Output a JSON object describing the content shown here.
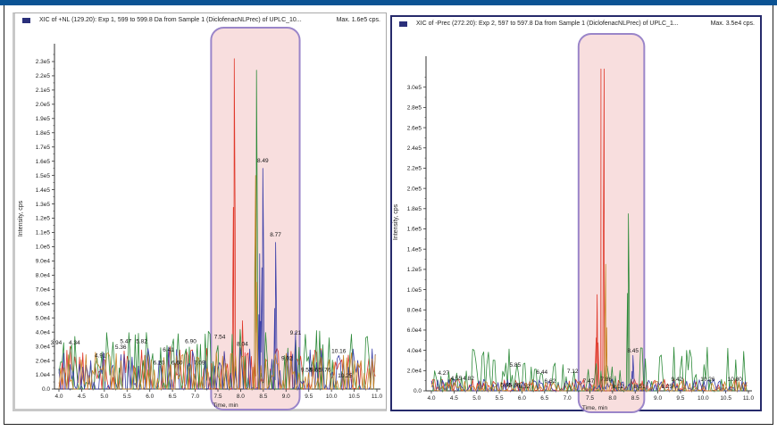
{
  "window": {
    "topbar_color": "#0b5394"
  },
  "panels": [
    {
      "id": "left",
      "header": {
        "title": "XIC of +NL (129.20): Exp 1, 599 to 599.8 Da from Sample 1 (DiclofenacNLPrec) of UPLC_10...",
        "max": "Max. 1.6e5 cps."
      }
    },
    {
      "id": "right",
      "header": {
        "title": "XIC of -Prec (272.20): Exp 2, 597 to 597.8 Da from Sample 1 (DiclofenacNLPrec) of UPLC_1...",
        "max": "Max. 3.5e4 cps."
      }
    }
  ],
  "chart_data": [
    {
      "type": "line",
      "title": "XIC of +NL (129.20): Exp 1, 599 to 599.8 Da from Sample 1 (DiclofenacNLPrec) of UPLC_10...",
      "annotation_max": "Max. 1.6e5 cps.",
      "xlabel": "Time, min",
      "ylabel": "Intensity, cps",
      "xlim": [
        4.0,
        11.0
      ],
      "ylim": [
        0,
        235000
      ],
      "x_ticks": [
        "4.0",
        "4.5",
        "5.0",
        "5.5",
        "6.0",
        "6.5",
        "7.0",
        "7.5",
        "8.0",
        "8.5",
        "9.0",
        "9.5",
        "10.0",
        "10.5",
        "11.0"
      ],
      "y_ticks": [
        "0.0",
        "1.0e4",
        "2.0e4",
        "3.0e4",
        "4.0e4",
        "5.0e4",
        "6.0e4",
        "7.0e4",
        "8.0e4",
        "9.0e4",
        "1.0e5",
        "1.1e5",
        "1.2e5",
        "1.3e5",
        "1.4e5",
        "1.5e5",
        "1.6e5",
        "1.7e5",
        "1.8e5",
        "1.9e5",
        "2.0e5",
        "2.1e5",
        "2.2e5",
        "2.3e5"
      ],
      "series_colors": [
        "#e0392b",
        "#2e8b3a",
        "#3b3fa8",
        "#c8862a"
      ],
      "highlight_region": {
        "x_from": 7.35,
        "x_to": 9.3,
        "fill": "#f8dede",
        "border": "#9a85c9"
      },
      "peaks": [
        {
          "series": 0,
          "x": 7.86,
          "y": 232000
        },
        {
          "series": 1,
          "x": 8.35,
          "y": 224000
        },
        {
          "series": 3,
          "x": 8.33,
          "y": 150000
        },
        {
          "series": 2,
          "x": 8.49,
          "y": 155000
        },
        {
          "series": 2,
          "x": 8.77,
          "y": 103000
        },
        {
          "series": 2,
          "x": 8.42,
          "y": 95000
        },
        {
          "series": 0,
          "x": 8.04,
          "y": 48000
        },
        {
          "series": 2,
          "x": 9.21,
          "y": 40000
        }
      ],
      "peak_labels": [
        {
          "text": "3.94",
          "x": 3.94,
          "y": 30000
        },
        {
          "text": "4.34",
          "x": 4.34,
          "y": 30000
        },
        {
          "text": "4.91",
          "x": 4.91,
          "y": 21000
        },
        {
          "text": "5.36",
          "x": 5.36,
          "y": 27000
        },
        {
          "text": "5.47",
          "x": 5.47,
          "y": 31000
        },
        {
          "text": "5.82",
          "x": 5.82,
          "y": 31000
        },
        {
          "text": "6.20",
          "x": 6.2,
          "y": 16000
        },
        {
          "text": "6.41",
          "x": 6.41,
          "y": 25000
        },
        {
          "text": "6.60",
          "x": 6.6,
          "y": 16000
        },
        {
          "text": "6.90",
          "x": 6.9,
          "y": 31000
        },
        {
          "text": "7.09",
          "x": 7.09,
          "y": 16000
        },
        {
          "text": "7.54",
          "x": 7.54,
          "y": 34000
        },
        {
          "text": "8.04",
          "x": 8.04,
          "y": 29000
        },
        {
          "text": "8.49",
          "x": 8.49,
          "y": 158000
        },
        {
          "text": "8.77",
          "x": 8.77,
          "y": 106000
        },
        {
          "text": "9.02",
          "x": 9.02,
          "y": 19000
        },
        {
          "text": "9.21",
          "x": 9.21,
          "y": 37000
        },
        {
          "text": "9.53",
          "x": 9.45,
          "y": 11000
        },
        {
          "text": "9.65",
          "x": 9.65,
          "y": 11000
        },
        {
          "text": "9.76",
          "x": 9.86,
          "y": 11000
        },
        {
          "text": "10.16",
          "x": 10.16,
          "y": 24000
        },
        {
          "text": "10.25",
          "x": 10.3,
          "y": 7000
        }
      ]
    },
    {
      "type": "line",
      "title": "XIC of -Prec (272.20): Exp 2, 597 to 597.8 Da from Sample 1 (DiclofenacNLPrec) of UPLC_1...",
      "annotation_max": "Max. 3.5e4 cps.",
      "xlabel": "Time, min",
      "ylabel": "Intensity, cps",
      "xlim": [
        4.0,
        11.0
      ],
      "ylim": [
        0,
        320000
      ],
      "x_ticks": [
        "4.0",
        "4.5",
        "5.0",
        "5.5",
        "6.0",
        "6.5",
        "7.0",
        "7.5",
        "8.0",
        "8.5",
        "9.0",
        "9.5",
        "10.0",
        "10.5",
        "11.0"
      ],
      "y_ticks": [
        "0.0",
        "2.0e4",
        "4.0e4",
        "6.0e4",
        "8.0e4",
        "1.0e5",
        "1.2e5",
        "1.4e5",
        "1.6e5",
        "1.8e5",
        "2.0e5",
        "2.2e5",
        "2.4e5",
        "2.6e5",
        "2.8e5",
        "3.0e5"
      ],
      "series_colors": [
        "#e0392b",
        "#2e8b3a",
        "#3b3fa8",
        "#c8862a"
      ],
      "highlight_region": {
        "x_from": 7.25,
        "x_to": 8.7,
        "fill": "#f8dede",
        "border": "#9a85c9"
      },
      "peaks": [
        {
          "series": 0,
          "x": 7.78,
          "y": 318000,
          "flat_top": true
        },
        {
          "series": 0,
          "x": 7.66,
          "y": 95000
        },
        {
          "series": 3,
          "x": 7.85,
          "y": 125000
        },
        {
          "series": 1,
          "x": 8.35,
          "y": 175000
        },
        {
          "series": 2,
          "x": 8.45,
          "y": 35000
        }
      ],
      "peak_labels": [
        {
          "text": "4.27",
          "x": 4.27,
          "y": 14000
        },
        {
          "text": "4.55",
          "x": 4.55,
          "y": 9000
        },
        {
          "text": "4.82",
          "x": 4.82,
          "y": 9000
        },
        {
          "text": "5.65",
          "x": 5.65,
          "y": 2000
        },
        {
          "text": "5.68",
          "x": 5.84,
          "y": 2000
        },
        {
          "text": "5.85",
          "x": 5.85,
          "y": 22000
        },
        {
          "text": "6.32",
          "x": 6.05,
          "y": 1000
        },
        {
          "text": "6.44",
          "x": 6.44,
          "y": 15000
        },
        {
          "text": "6.62",
          "x": 6.62,
          "y": 6000
        },
        {
          "text": "7.12",
          "x": 7.12,
          "y": 16000
        },
        {
          "text": "7.47",
          "x": 7.47,
          "y": 6000
        },
        {
          "text": "7.86",
          "x": 7.86,
          "y": 8000
        },
        {
          "text": "8.12",
          "x": 8.12,
          "y": 1000
        },
        {
          "text": "8.45",
          "x": 8.45,
          "y": 36000
        },
        {
          "text": "8.51",
          "x": 8.6,
          "y": 1000
        },
        {
          "text": "9.25",
          "x": 9.2,
          "y": 1000
        },
        {
          "text": "9.42",
          "x": 9.42,
          "y": 8000
        },
        {
          "text": "10.26",
          "x": 10.1,
          "y": 8000
        },
        {
          "text": "10.80",
          "x": 10.7,
          "y": 8000
        }
      ]
    }
  ]
}
